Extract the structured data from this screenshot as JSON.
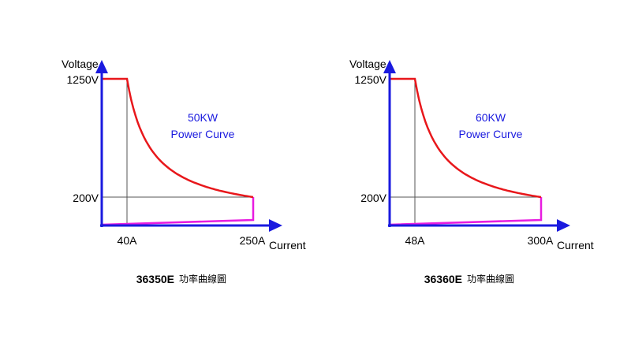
{
  "colors": {
    "axis": "#1a1adf",
    "curve": "#e8171b",
    "low_line": "#e81ce0",
    "guide": "#555555",
    "annotation": "#1a1adf"
  },
  "axes": {
    "y_label": "Voltage",
    "x_label": "Current"
  },
  "chart_data": [
    {
      "type": "line",
      "title": "50KW Power Curve",
      "title_line1": "50KW",
      "title_line2": "Power Curve",
      "caption_model": "36350E",
      "caption_title": "功率曲線圖",
      "v_max_label": "1250V",
      "v_min_label": "200V",
      "i_knee_label": "40A",
      "i_max_label": "250A",
      "power_kw": 50,
      "v_max": 1250,
      "v_min": 200,
      "i_knee": 40,
      "i_max": 250
    },
    {
      "type": "line",
      "title": "60KW Power Curve",
      "title_line1": "60KW",
      "title_line2": "Power Curve",
      "caption_model": "36360E",
      "caption_title": "功率曲線圖",
      "v_max_label": "1250V",
      "v_min_label": "200V",
      "i_knee_label": "48A",
      "i_max_label": "300A",
      "power_kw": 60,
      "v_max": 1250,
      "v_min": 200,
      "i_knee": 48,
      "i_max": 300
    }
  ]
}
